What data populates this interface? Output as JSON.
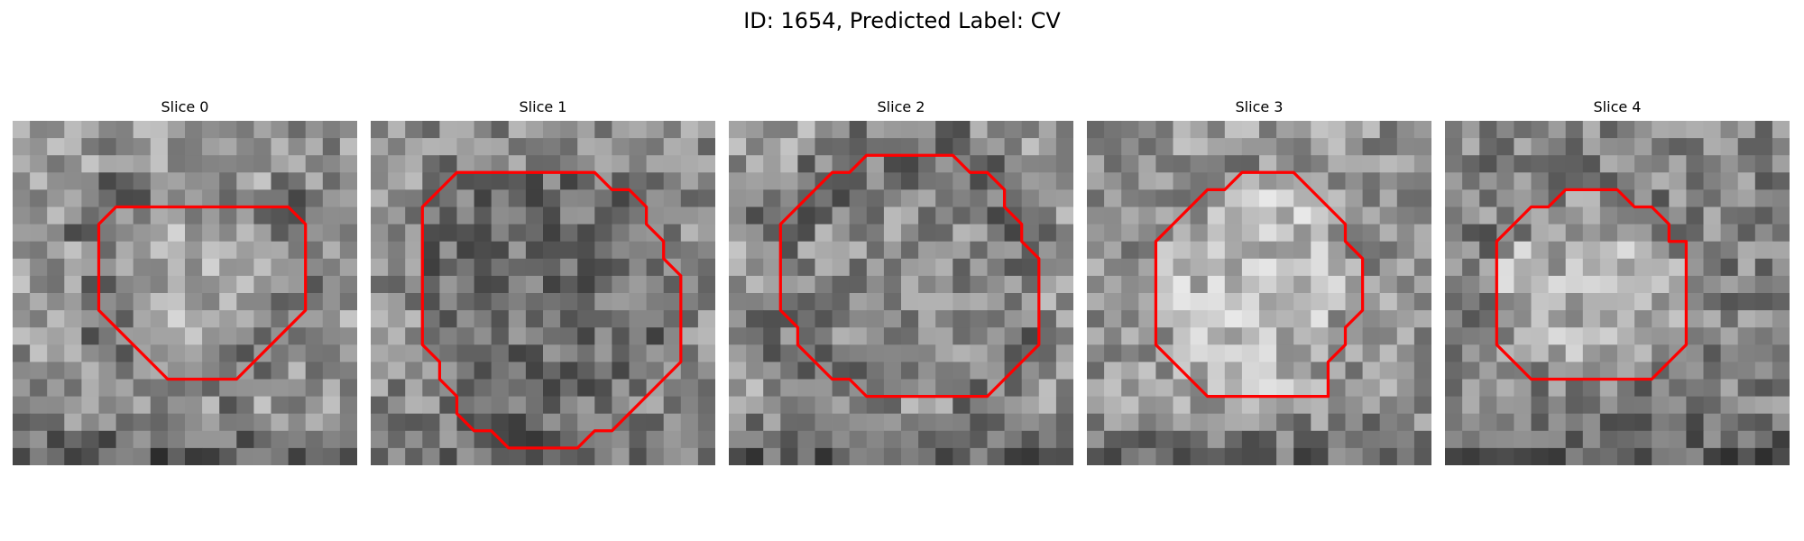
{
  "figure": {
    "title": "ID: 1654, Predicted Label: CV"
  },
  "contour_color": "#ff0000",
  "panels": [
    {
      "title": "Slice 0",
      "image": "grayscale-microscopy-patch",
      "contour": [
        [
          11,
          5
        ],
        [
          16,
          5
        ],
        [
          17,
          6
        ],
        [
          17,
          11
        ],
        [
          16,
          12
        ],
        [
          15,
          13
        ],
        [
          14,
          14
        ],
        [
          13,
          15
        ],
        [
          9,
          15
        ],
        [
          6,
          12
        ],
        [
          5,
          11
        ],
        [
          5,
          6
        ],
        [
          6,
          5
        ]
      ]
    },
    {
      "title": "Slice 1",
      "image": "grayscale-microscopy-patch",
      "contour": [
        [
          8,
          3
        ],
        [
          13,
          3
        ],
        [
          14,
          4
        ],
        [
          15,
          4
        ],
        [
          16,
          5
        ],
        [
          16,
          6
        ],
        [
          17,
          7
        ],
        [
          17,
          8
        ],
        [
          18,
          9
        ],
        [
          18,
          14
        ],
        [
          17,
          15
        ],
        [
          16,
          16
        ],
        [
          15,
          17
        ],
        [
          14,
          18
        ],
        [
          13,
          18
        ],
        [
          12,
          19
        ],
        [
          8,
          19
        ],
        [
          7,
          18
        ],
        [
          6,
          18
        ],
        [
          5,
          17
        ],
        [
          5,
          16
        ],
        [
          4,
          15
        ],
        [
          4,
          14
        ],
        [
          3,
          13
        ],
        [
          3,
          5
        ],
        [
          4,
          4
        ],
        [
          5,
          3
        ]
      ]
    },
    {
      "title": "Slice 2",
      "image": "grayscale-microscopy-patch",
      "contour": [
        [
          10,
          2
        ],
        [
          13,
          2
        ],
        [
          14,
          3
        ],
        [
          15,
          3
        ],
        [
          16,
          4
        ],
        [
          16,
          5
        ],
        [
          17,
          6
        ],
        [
          17,
          7
        ],
        [
          18,
          8
        ],
        [
          18,
          13
        ],
        [
          17,
          14
        ],
        [
          16,
          15
        ],
        [
          15,
          16
        ],
        [
          8,
          16
        ],
        [
          7,
          15
        ],
        [
          6,
          15
        ],
        [
          5,
          14
        ],
        [
          4,
          13
        ],
        [
          4,
          12
        ],
        [
          3,
          11
        ],
        [
          3,
          6
        ],
        [
          4,
          5
        ],
        [
          5,
          4
        ],
        [
          6,
          3
        ],
        [
          7,
          3
        ],
        [
          8,
          2
        ]
      ]
    },
    {
      "title": "Slice 3",
      "image": "grayscale-microscopy-patch",
      "contour": [
        [
          10,
          3
        ],
        [
          12,
          3
        ],
        [
          13,
          4
        ],
        [
          14,
          5
        ],
        [
          15,
          6
        ],
        [
          15,
          7
        ],
        [
          16,
          8
        ],
        [
          16,
          11
        ],
        [
          15,
          12
        ],
        [
          15,
          13
        ],
        [
          14,
          14
        ],
        [
          14,
          16
        ],
        [
          7,
          16
        ],
        [
          6,
          15
        ],
        [
          5,
          14
        ],
        [
          4,
          13
        ],
        [
          4,
          12
        ],
        [
          4,
          7
        ],
        [
          5,
          6
        ],
        [
          6,
          5
        ],
        [
          7,
          4
        ],
        [
          8,
          4
        ],
        [
          9,
          3
        ]
      ]
    },
    {
      "title": "Slice 4",
      "image": "grayscale-microscopy-patch",
      "contour": [
        [
          7,
          4
        ],
        [
          10,
          4
        ],
        [
          11,
          5
        ],
        [
          12,
          5
        ],
        [
          13,
          6
        ],
        [
          13,
          7
        ],
        [
          14,
          7
        ],
        [
          14,
          13
        ],
        [
          13,
          14
        ],
        [
          12,
          15
        ],
        [
          5,
          15
        ],
        [
          4,
          14
        ],
        [
          3,
          13
        ],
        [
          3,
          7
        ],
        [
          4,
          6
        ],
        [
          5,
          5
        ],
        [
          6,
          5
        ]
      ]
    }
  ]
}
